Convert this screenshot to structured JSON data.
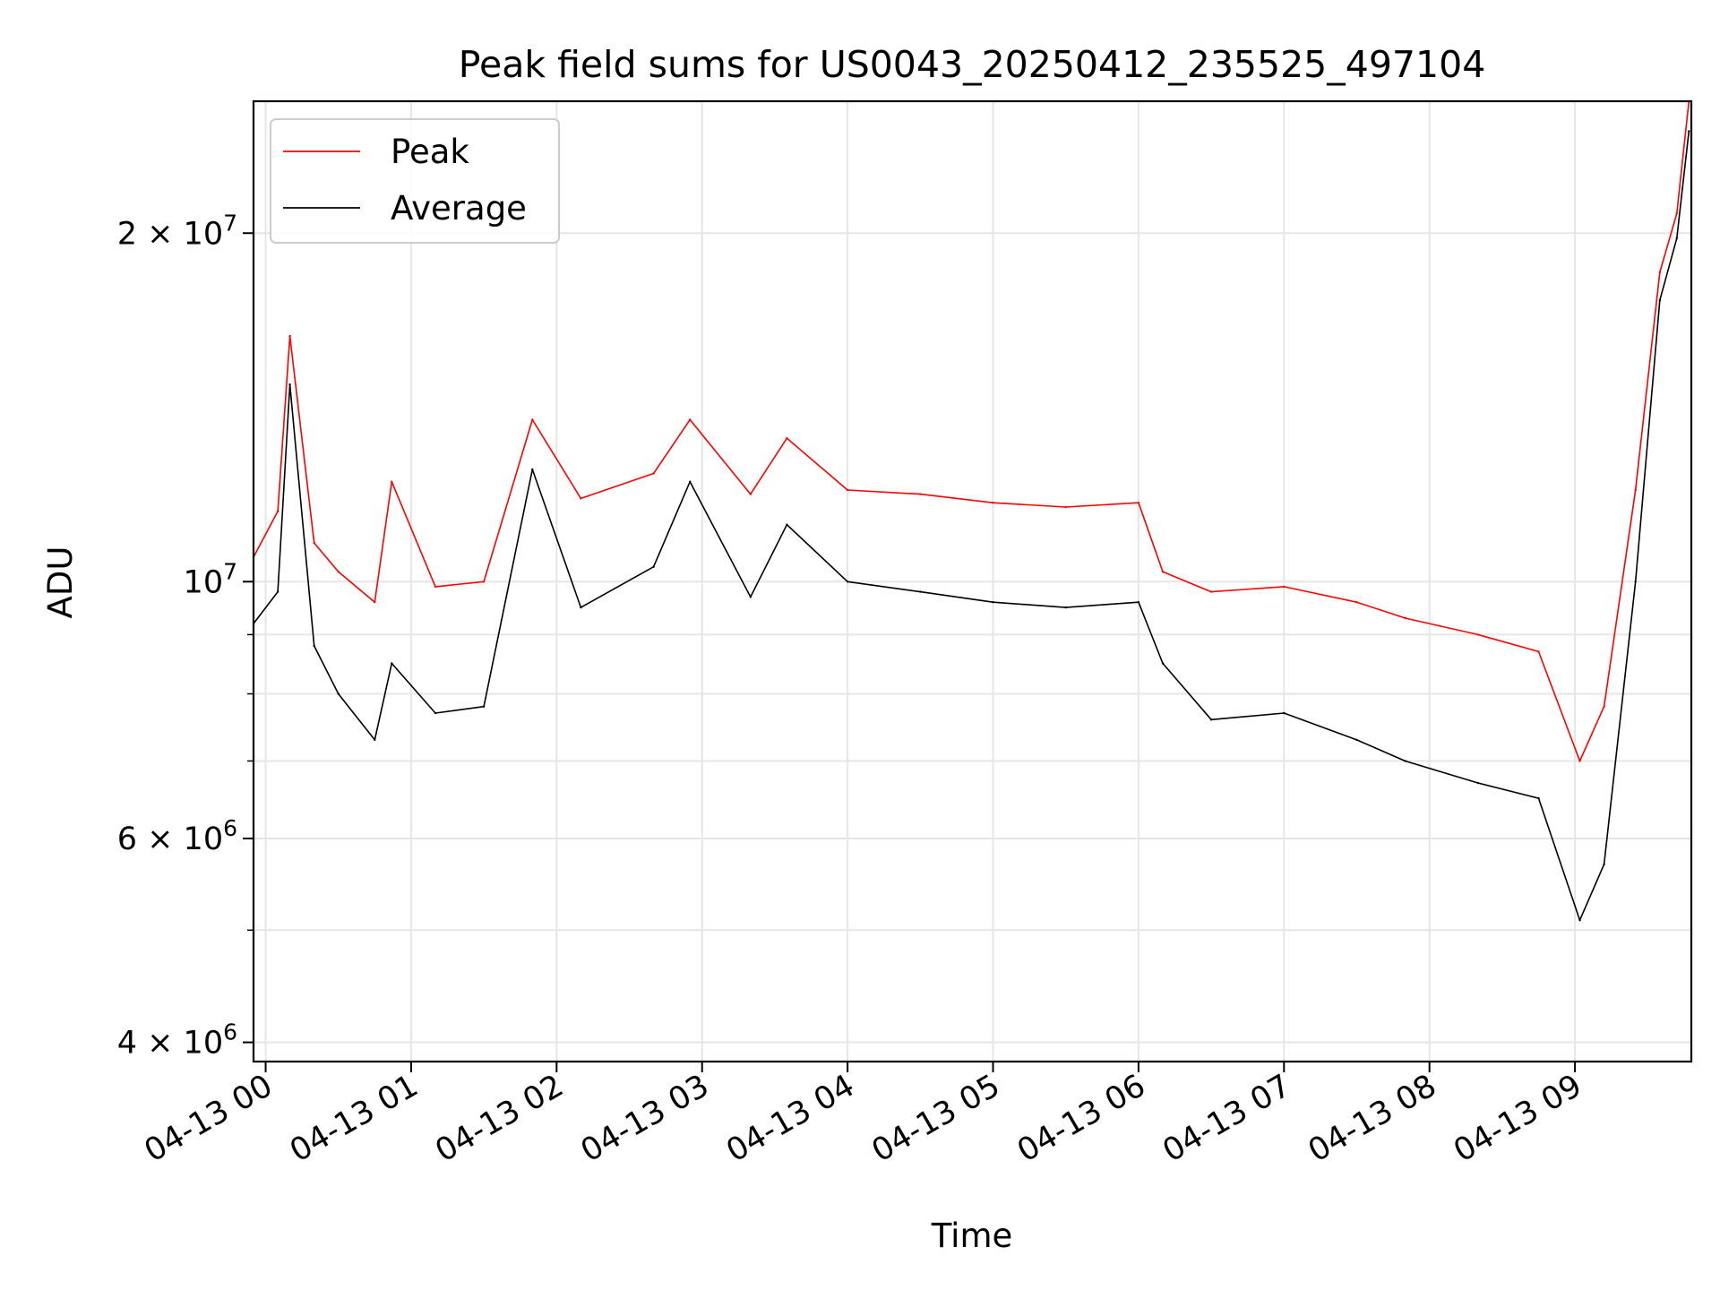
{
  "chart_data": {
    "type": "line",
    "title": "Peak field sums for US0043_20250412_235525_497104",
    "xlabel": "Time",
    "ylabel": "ADU",
    "y_scale": "log",
    "grid": true,
    "legend_position": "top-left",
    "xlim": [
      "2025-04-12T23:55:00",
      "2025-04-13T09:48:00"
    ],
    "ylim": [
      3850000,
      26000000
    ],
    "x_ticks": [
      {
        "value": "2025-04-13T00:00",
        "label": "04-13 00"
      },
      {
        "value": "2025-04-13T01:00",
        "label": "04-13 01"
      },
      {
        "value": "2025-04-13T02:00",
        "label": "04-13 02"
      },
      {
        "value": "2025-04-13T03:00",
        "label": "04-13 03"
      },
      {
        "value": "2025-04-13T04:00",
        "label": "04-13 04"
      },
      {
        "value": "2025-04-13T05:00",
        "label": "04-13 05"
      },
      {
        "value": "2025-04-13T06:00",
        "label": "04-13 06"
      },
      {
        "value": "2025-04-13T07:00",
        "label": "04-13 07"
      },
      {
        "value": "2025-04-13T08:00",
        "label": "04-13 08"
      },
      {
        "value": "2025-04-13T09:00",
        "label": "04-13 09"
      }
    ],
    "y_ticks": [
      {
        "value": 4000000,
        "mantissa": "4",
        "exp": "6"
      },
      {
        "value": 6000000,
        "mantissa": "6",
        "exp": "6"
      },
      {
        "value": 10000000,
        "mantissa": "",
        "exp": "7"
      },
      {
        "value": 20000000,
        "mantissa": "2",
        "exp": "7"
      }
    ],
    "y_minor_ticks": [
      5000000,
      7000000,
      8000000,
      9000000
    ],
    "series": [
      {
        "name": "Peak",
        "color": "#ff0000",
        "x": [
          "2025-04-12T23:55",
          "2025-04-13T00:05",
          "2025-04-13T00:10",
          "2025-04-13T00:20",
          "2025-04-13T00:30",
          "2025-04-13T00:45",
          "2025-04-13T00:52",
          "2025-04-13T01:10",
          "2025-04-13T01:30",
          "2025-04-13T01:50",
          "2025-04-13T02:10",
          "2025-04-13T02:40",
          "2025-04-13T02:55",
          "2025-04-13T03:20",
          "2025-04-13T03:35",
          "2025-04-13T04:00",
          "2025-04-13T04:30",
          "2025-04-13T05:00",
          "2025-04-13T05:30",
          "2025-04-13T06:00",
          "2025-04-13T06:10",
          "2025-04-13T06:30",
          "2025-04-13T07:00",
          "2025-04-13T07:30",
          "2025-04-13T07:50",
          "2025-04-13T08:20",
          "2025-04-13T08:45",
          "2025-04-13T09:02",
          "2025-04-13T09:12",
          "2025-04-13T09:25",
          "2025-04-13T09:35",
          "2025-04-13T09:42",
          "2025-04-13T09:47"
        ],
        "y": [
          10500000,
          11500000,
          16300000,
          10800000,
          10200000,
          9600000,
          12200000,
          9900000,
          10000000,
          13800000,
          11800000,
          12400000,
          13800000,
          11900000,
          13300000,
          12000000,
          11900000,
          11700000,
          11600000,
          11700000,
          10200000,
          9800000,
          9900000,
          9600000,
          9300000,
          9000000,
          8700000,
          7000000,
          7800000,
          12000000,
          18500000,
          20800000,
          26000000
        ]
      },
      {
        "name": "Average",
        "color": "#000000",
        "x": [
          "2025-04-12T23:55",
          "2025-04-13T00:05",
          "2025-04-13T00:10",
          "2025-04-13T00:20",
          "2025-04-13T00:30",
          "2025-04-13T00:45",
          "2025-04-13T00:52",
          "2025-04-13T01:10",
          "2025-04-13T01:30",
          "2025-04-13T01:50",
          "2025-04-13T02:10",
          "2025-04-13T02:40",
          "2025-04-13T02:55",
          "2025-04-13T03:20",
          "2025-04-13T03:35",
          "2025-04-13T04:00",
          "2025-04-13T04:30",
          "2025-04-13T05:00",
          "2025-04-13T05:30",
          "2025-04-13T06:00",
          "2025-04-13T06:10",
          "2025-04-13T06:30",
          "2025-04-13T07:00",
          "2025-04-13T07:30",
          "2025-04-13T07:50",
          "2025-04-13T08:20",
          "2025-04-13T08:45",
          "2025-04-13T09:02",
          "2025-04-13T09:12",
          "2025-04-13T09:25",
          "2025-04-13T09:35",
          "2025-04-13T09:42",
          "2025-04-13T09:47"
        ],
        "y": [
          9200000,
          9800000,
          14800000,
          8800000,
          8000000,
          7300000,
          8500000,
          7700000,
          7800000,
          12500000,
          9500000,
          10300000,
          12200000,
          9700000,
          11200000,
          10000000,
          9800000,
          9600000,
          9500000,
          9600000,
          8500000,
          7600000,
          7700000,
          7300000,
          7000000,
          6700000,
          6500000,
          5100000,
          5700000,
          10000000,
          17500000,
          19800000,
          24500000
        ]
      }
    ]
  }
}
